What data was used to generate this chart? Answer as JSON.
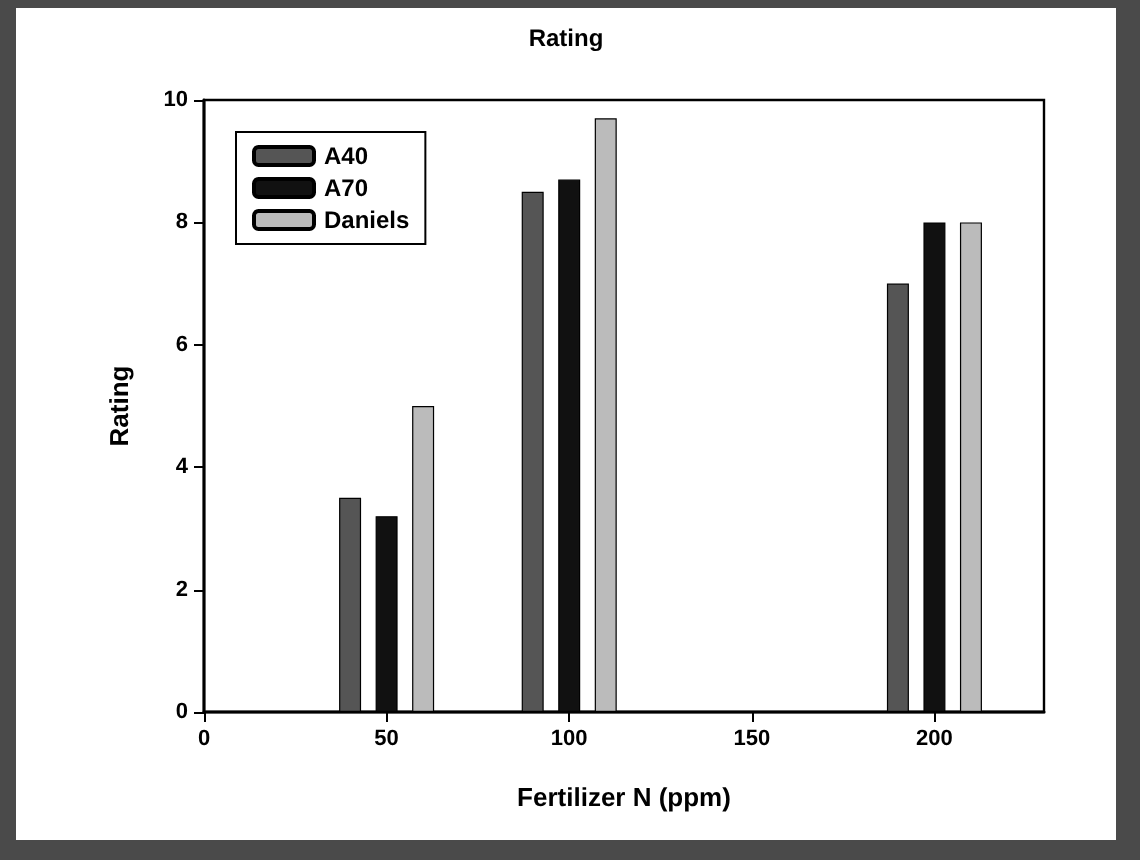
{
  "chart_data": {
    "type": "bar",
    "title": "Rating",
    "xlabel": "Fertilizer N (ppm)",
    "ylabel": "Rating",
    "xlim": [
      0,
      230
    ],
    "xticks": [
      0,
      50,
      100,
      150,
      200
    ],
    "ylim": [
      0,
      10
    ],
    "yticks": [
      0,
      2,
      4,
      6,
      8,
      10
    ],
    "series": [
      {
        "name": "A40",
        "color": "#555555",
        "x": [
          40,
          90,
          190
        ],
        "values": [
          3.5,
          8.5,
          7.0
        ]
      },
      {
        "name": "A70",
        "color": "#111111",
        "x": [
          50,
          100,
          200
        ],
        "values": [
          3.2,
          8.7,
          8.0
        ]
      },
      {
        "name": "Daniels",
        "color": "#bbbbbb",
        "x": [
          60,
          110,
          210
        ],
        "values": [
          5.0,
          9.7,
          8.0
        ]
      }
    ],
    "grid": false,
    "legend": "top left"
  }
}
